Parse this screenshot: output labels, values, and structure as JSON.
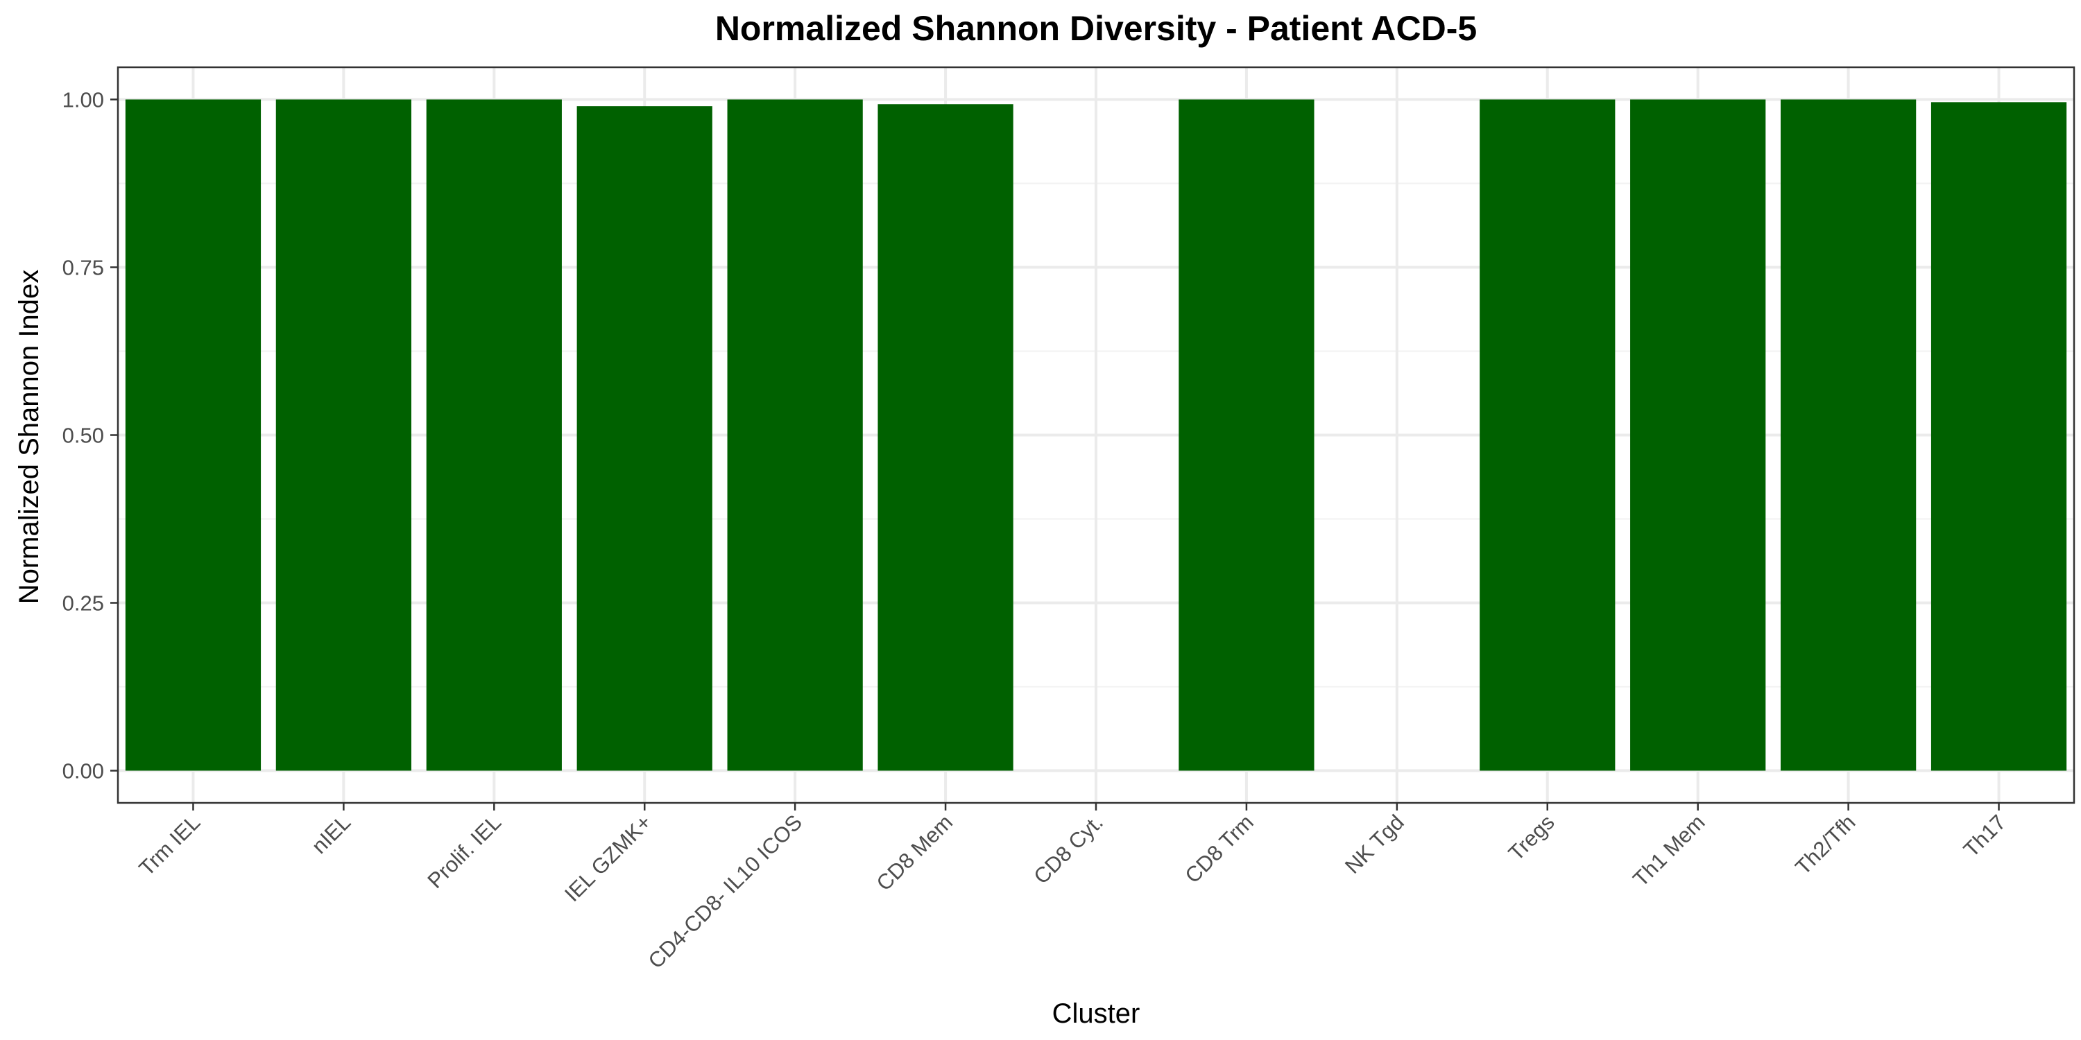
{
  "chart_data": {
    "type": "bar",
    "title": "Normalized Shannon Diversity - Patient ACD-5",
    "xlabel": "Cluster",
    "ylabel": "Normalized Shannon Index",
    "categories": [
      "Trm IEL",
      "nIEL",
      "Prolif. IEL",
      "IEL GZMK+",
      "CD4-CD8- IL10 ICOS",
      "CD8 Mem",
      "CD8 Cyt.",
      "CD8 Trm",
      "NK Tgd",
      "Tregs",
      "Th1 Mem",
      "Th2/Tfh",
      "Th17"
    ],
    "values": [
      1.0,
      1.0,
      1.0,
      0.99,
      1.0,
      0.993,
      null,
      1.0,
      null,
      1.0,
      1.0,
      1.0,
      0.996
    ],
    "ylim": [
      -0.048,
      1.048
    ],
    "yticks": [
      0.0,
      0.25,
      0.5,
      0.75,
      1.0
    ],
    "ytick_labels": [
      "0.00",
      "0.25",
      "0.50",
      "0.75",
      "1.00"
    ],
    "bar_color": "#006100",
    "grid": true,
    "legend": "none"
  }
}
